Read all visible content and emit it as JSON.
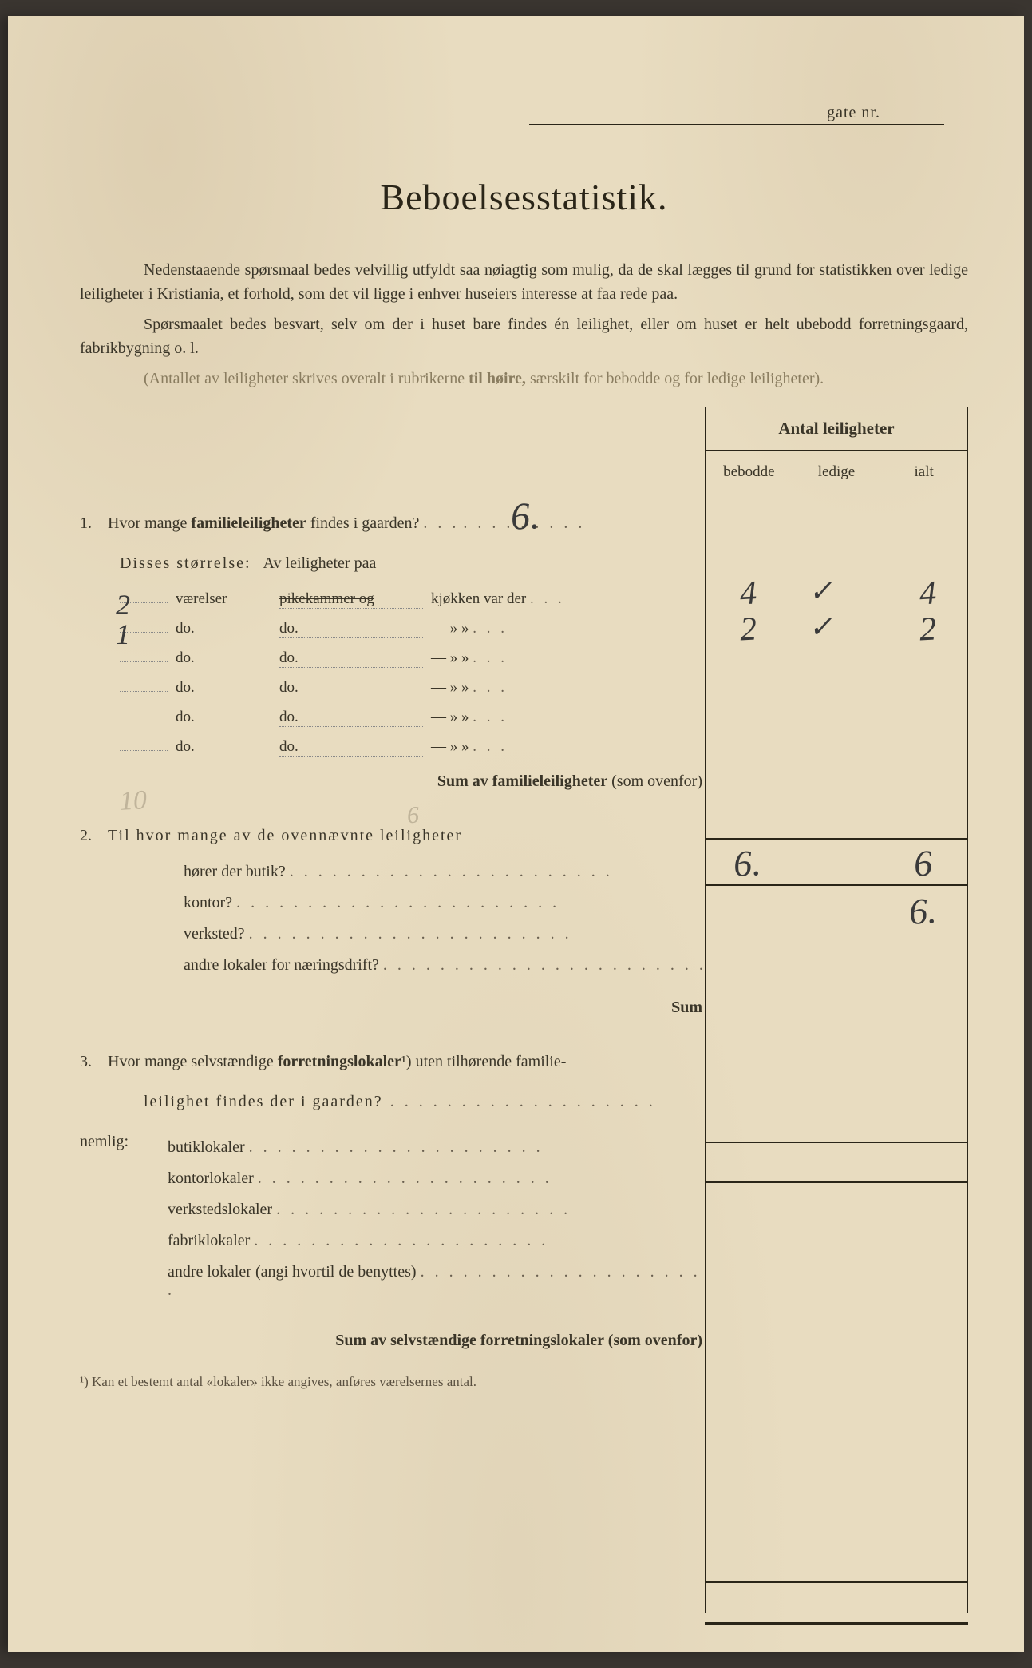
{
  "header": {
    "gate_label": "gate nr.",
    "title": "Beboelsesstatistik."
  },
  "intro": {
    "p1": "Nedenstaaende spørsmaal bedes velvillig utfyldt saa nøiagtig som mulig, da de skal lægges til grund for statistikken over ledige leiligheter i Kristiania, et forhold, som det vil ligge i enhver huseiers interesse at faa rede paa.",
    "p2": "Spørsmaalet bedes besvart, selv om der i huset bare findes én leilighet, eller om huset er helt ubebodd forretningsgaard, fabrikbygning o. l.",
    "p3_a": "(Antallet av leiligheter skrives overalt i rubrikerne ",
    "p3_b": "til høire,",
    "p3_c": " særskilt for bebodde og for ledige leiligheter)."
  },
  "table": {
    "header": "Antal leiligheter",
    "col1": "bebodde",
    "col2": "ledige",
    "col3": "ialt"
  },
  "q1": {
    "num": "1.",
    "text_a": "Hvor mange ",
    "text_b": "familieleiligheter",
    "text_c": " findes i gaarden?",
    "answer": "6.",
    "disses": "Disses størrelse:",
    "av": "Av leiligheter paa",
    "rows": [
      {
        "n": "2",
        "w1": "værelser",
        "w2": "pikekammer og",
        "w3": "kjøkken var der",
        "strike": true
      },
      {
        "n": "1",
        "w1": "do.",
        "w2": "do.",
        "w3": "—     »     »"
      },
      {
        "n": "",
        "w1": "do.",
        "w2": "do.",
        "w3": "—     »     »"
      },
      {
        "n": "",
        "w1": "do.",
        "w2": "do.",
        "w3": "—     »     »"
      },
      {
        "n": "",
        "w1": "do.",
        "w2": "do.",
        "w3": "—     »     »"
      },
      {
        "n": "",
        "w1": "do.",
        "w2": "do.",
        "w3": "—     »     »"
      }
    ],
    "ten_faint": "10",
    "six_faint": "6",
    "sum_a": "Sum av ",
    "sum_b": "familieleiligheter",
    "sum_c": " (som ovenfor)"
  },
  "q2": {
    "num": "2.",
    "text": "Til hvor mange av de ovennævnte leiligheter",
    "lines": [
      "hører der butik?",
      "kontor?",
      "verksted?",
      "andre lokaler for næringsdrift?"
    ],
    "sum": "Sum"
  },
  "q3": {
    "num": "3.",
    "text_a": "Hvor mange selvstændige ",
    "text_b": "forretningslokaler",
    "text_c": "¹) uten tilhørende familie-",
    "text_d": "leilighet findes der i gaarden?",
    "nemlig": "nemlig:",
    "lines": [
      "butiklokaler",
      "kontorlokaler",
      "verkstedslokaler",
      "fabriklokaler",
      "andre lokaler (angi hvortil de benyttes)"
    ],
    "sum": "Sum av selvstændige forretningslokaler (som ovenfor)"
  },
  "footnote": "¹)   Kan et bestemt antal «lokaler» ikke angives, anføres værelsernes antal.",
  "handwritten": {
    "col_vals": [
      {
        "bebodde": "4",
        "ledige": "✓",
        "ialt": "4"
      },
      {
        "bebodde": "2",
        "ledige": "✓",
        "ialt": "2"
      }
    ],
    "sum_bebodde": "6.",
    "sum_ialt": "6",
    "q2_ialt": "6."
  },
  "colors": {
    "paper": "#e8dcc0",
    "ink": "#2a2518",
    "pencil": "#3a3a3a",
    "faded": "#8a7d60"
  }
}
